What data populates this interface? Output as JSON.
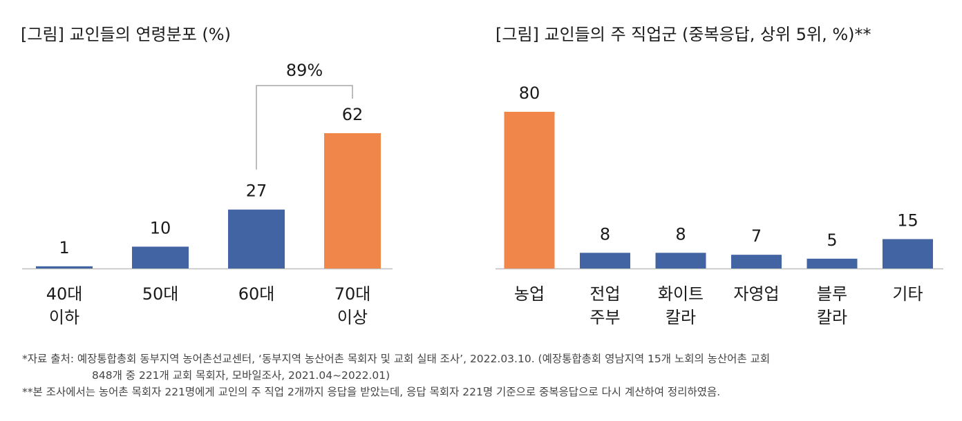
{
  "chart_data": [
    {
      "type": "bar",
      "title": "[그림] 교인들의 연령분포 (%)",
      "categories": [
        [
          "40대",
          "이하"
        ],
        [
          "50대"
        ],
        [
          "60대"
        ],
        [
          "70대",
          "이상"
        ]
      ],
      "values": [
        1,
        10,
        27,
        62
      ],
      "highlight_index": 3,
      "ylim": [
        0,
        70
      ],
      "annotation": {
        "label": "89%",
        "from_index": 2,
        "to_index": 3
      }
    },
    {
      "type": "bar",
      "title": "[그림] 교인들의 주 직업군 (중복응답, 상위 5위, %)**",
      "categories": [
        [
          "농업"
        ],
        [
          "전업",
          "주부"
        ],
        [
          "화이트",
          "칼라"
        ],
        [
          "자영업"
        ],
        [
          "블루",
          "칼라"
        ],
        [
          "기타"
        ]
      ],
      "values": [
        80,
        8,
        8,
        7,
        5,
        15
      ],
      "highlight_index": 0,
      "ylim": [
        0,
        90
      ]
    }
  ],
  "colors": {
    "blue": "#4264a3",
    "orange": "#f0864a",
    "axis": "#bfbfbf",
    "bracket": "#a6a6a6"
  },
  "notes": {
    "line1": "*자료 출처: 예장통합총회 동부지역 농어촌선교센터, ‘동부지역 농산어촌 목회자 및 교회 실태 조사’, 2022.03.10. (예장통합총회 영남지역 15개 노회의 농산어촌 교회",
    "line2": "848개 중 221개 교회 목회자, 모바일조사, 2021.04~2022.01)",
    "line3": "**본 조사에서는 농어촌 목회자 221명에게 교인의 주 직업 2개까지 응답을 받았는데, 응답 목회자 221명 기준으로 중복응답으로 다시 계산하여 정리하였음."
  }
}
